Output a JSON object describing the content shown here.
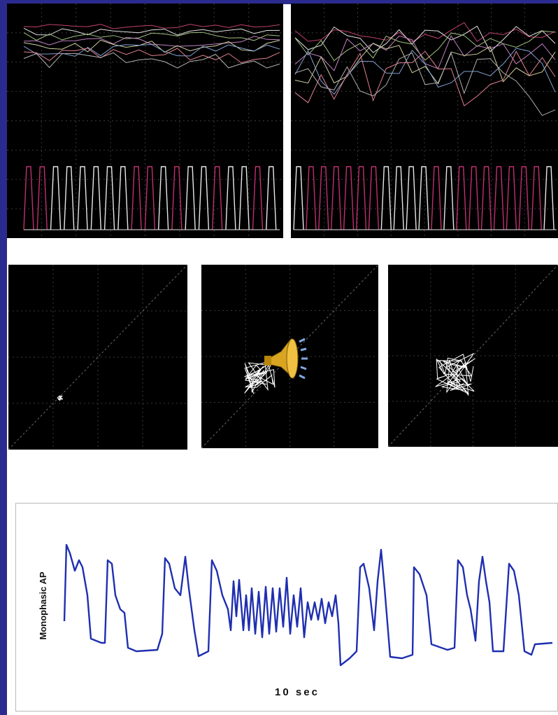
{
  "figure": {
    "y_axis_label": "Monophasic AP",
    "time_scale_label": "10 sec"
  }
}
